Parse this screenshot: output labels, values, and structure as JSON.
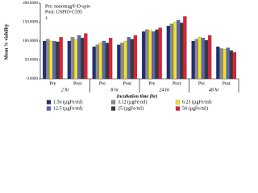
{
  "chart_data": {
    "type": "bar",
    "y_label": "Mean % viability",
    "x_label": "Incubation time (hr)",
    "annotations": [
      "Pre: nanomag®-D-spio",
      "Post: USPIO-C595",
      "±"
    ],
    "categories": [
      "Pre",
      "Post",
      "Pre",
      "Post",
      "Pre",
      "Post",
      "Pre",
      "Post"
    ],
    "groups": [
      "2 hr",
      "8 hr",
      "24 hr",
      "48 hr"
    ],
    "series": [
      {
        "name": "1.56 (µgFe/ml)",
        "color": "#1f2f7a",
        "values": [
          100,
          100,
          85,
          90,
          125,
          140,
          100,
          85
        ]
      },
      {
        "name": "3.12 (µgFe/ml)",
        "color": "#8c8c8c",
        "values": [
          105,
          110,
          90,
          95,
          130,
          145,
          105,
          80
        ]
      },
      {
        "name": "6.25 (µgFe/ml)",
        "color": "#f2e227",
        "values": [
          100,
          105,
          95,
          100,
          128,
          150,
          110,
          78
        ]
      },
      {
        "name": "12.5 (µgFe/ml)",
        "color": "#5a66b8",
        "values": [
          100,
          115,
          100,
          110,
          125,
          155,
          108,
          82
        ]
      },
      {
        "name": "25 (µgFe/ml)",
        "color": "#3a3a3a",
        "values": [
          98,
          108,
          95,
          105,
          130,
          148,
          102,
          75
        ]
      },
      {
        "name": "50 (µgFe/ml)",
        "color": "#e0203a",
        "values": [
          110,
          120,
          108,
          115,
          135,
          165,
          115,
          70
        ]
      }
    ],
    "ylim": [
      0,
      200
    ],
    "yticks": [
      {
        "value": 0,
        "label": "0.0000"
      },
      {
        "value": 50,
        "label": "50.0000"
      },
      {
        "value": 100,
        "label": "100.0000"
      },
      {
        "value": 150,
        "label": "150.0000"
      },
      {
        "value": 200,
        "label": "200.0000"
      }
    ]
  }
}
